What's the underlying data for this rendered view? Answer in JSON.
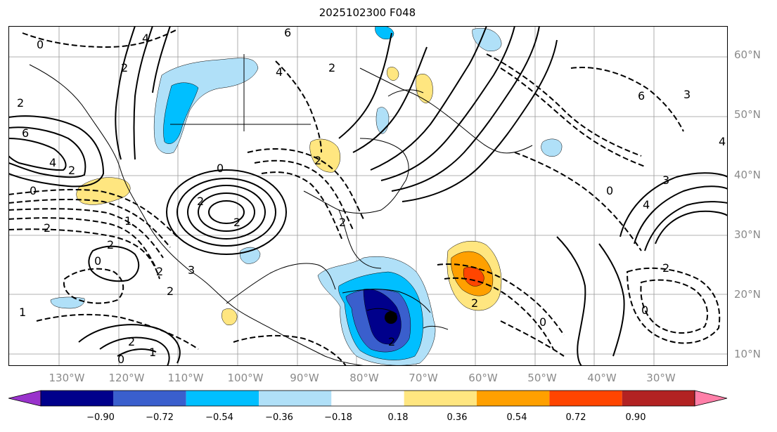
{
  "title": "2025102300 F048",
  "lat_labels": [
    "60°N",
    "50°N",
    "40°N",
    "30°N",
    "20°N",
    "10°N"
  ],
  "lon_labels": [
    "130°W",
    "120°W",
    "110°W",
    "100°W",
    "90°W",
    "80°W",
    "70°W",
    "60°W",
    "50°W",
    "40°W",
    "30°W"
  ],
  "contour_labels": [
    "0",
    "2",
    "4",
    "6",
    "2",
    "0",
    "4",
    "2",
    "6",
    "4",
    "2",
    "0",
    "2",
    "2",
    "2",
    "6",
    "3",
    "4",
    "3",
    "0",
    "4",
    "2",
    "0",
    "1",
    "2",
    "2",
    "0",
    "2",
    "1",
    "2",
    "3",
    "0",
    "2",
    "2",
    "1",
    "2",
    "0",
    "2"
  ],
  "colorbar": {
    "ticks": [
      "−0.90",
      "−0.72",
      "−0.54",
      "−0.36",
      "−0.18",
      "0.18",
      "0.36",
      "0.54",
      "0.72",
      "0.90"
    ],
    "colors": [
      "#9933cc",
      "#00008b",
      "#3a5fcd",
      "#00bfff",
      "#b0e0f8",
      "#ffffff",
      "#ffe680",
      "#ffa000",
      "#ff4500",
      "#b22222",
      "#ff7fa8"
    ]
  }
}
